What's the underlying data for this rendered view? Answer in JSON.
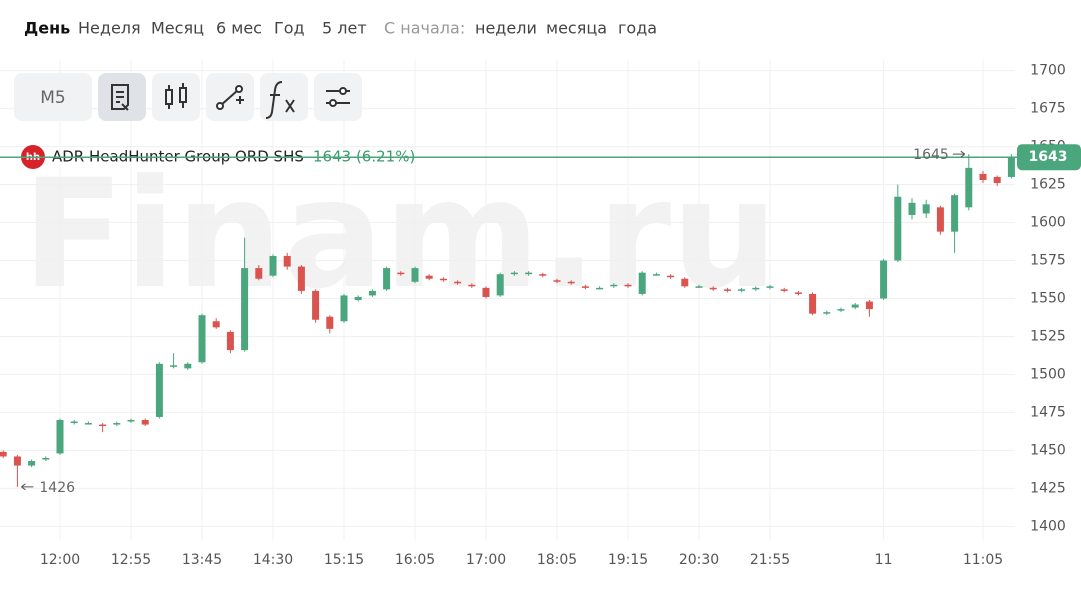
{
  "periods": [
    "День",
    "Неделя",
    "Месяц",
    "6 мес",
    "Год",
    "5 лет"
  ],
  "since_label": "С начала:",
  "since_options": [
    "недели",
    "месяца",
    "года"
  ],
  "toolbar": {
    "timeframe": "M5"
  },
  "watermark": "Finam.ru",
  "chart_data": {
    "type": "candlestick",
    "name": "ADR HeadHunter Group ORD SHS",
    "logo": "hh",
    "change_label": "1643 (6.21%)",
    "up_color": "#4aa67d",
    "down_color": "#d9534f",
    "grid": true,
    "categories": [
      null,
      null,
      null,
      null,
      "12:00",
      null,
      null,
      null,
      null,
      "12:55",
      null,
      null,
      null,
      null,
      "13:45",
      null,
      null,
      null,
      null,
      "14:30",
      null,
      null,
      null,
      null,
      "15:15",
      null,
      null,
      null,
      null,
      "16:05",
      null,
      null,
      null,
      null,
      "17:00",
      null,
      null,
      null,
      null,
      "18:05",
      null,
      null,
      null,
      null,
      "19:15",
      null,
      null,
      null,
      null,
      "20:30",
      null,
      null,
      null,
      null,
      "21:55",
      null,
      null,
      null,
      null,
      null,
      null,
      null,
      "11",
      null,
      null,
      null,
      null,
      null,
      null,
      "11:05",
      null,
      null
    ],
    "open": [
      1449,
      1446,
      1440,
      1444,
      1448,
      1468,
      1468,
      1467,
      1467,
      1469,
      1470,
      1472,
      1505,
      1504,
      1508,
      1535,
      1528,
      1516,
      1570,
      1565,
      1578,
      1571,
      1555,
      1538,
      1535,
      1549,
      1552,
      1556,
      1567,
      1561,
      1565,
      1563,
      1561,
      1559,
      1557,
      1552,
      1566,
      1566,
      1566,
      1562,
      1561,
      1558,
      1557,
      1558,
      1559,
      1553,
      1566,
      1565,
      1563,
      1558,
      1557,
      1556,
      1555,
      1556,
      1557,
      1556,
      1554,
      1553,
      1540,
      1542,
      1544,
      1548,
      1550,
      1575,
      1605,
      1606,
      1610,
      1594,
      1610,
      1632,
      1630,
      1630
    ],
    "high": [
      1450,
      1447,
      1444,
      1446,
      1471,
      1470,
      1469,
      1468,
      1469,
      1471,
      1471,
      1508,
      1514,
      1508,
      1540,
      1537,
      1529,
      1590,
      1572,
      1579,
      1580,
      1572,
      1556,
      1539,
      1553,
      1552,
      1556,
      1571,
      1568,
      1571,
      1566,
      1564,
      1562,
      1560,
      1558,
      1567,
      1568,
      1568,
      1567,
      1563,
      1562,
      1559,
      1558,
      1560,
      1560,
      1568,
      1567,
      1566,
      1564,
      1559,
      1558,
      1557,
      1557,
      1558,
      1559,
      1557,
      1555,
      1554,
      1542,
      1544,
      1547,
      1549,
      1576,
      1625,
      1616,
      1615,
      1611,
      1619,
      1645,
      1634,
      1631,
      1645
    ],
    "low": [
      1445,
      1426,
      1439,
      1443,
      1447,
      1467,
      1467,
      1462,
      1466,
      1468,
      1466,
      1471,
      1504,
      1503,
      1507,
      1530,
      1514,
      1515,
      1562,
      1564,
      1569,
      1553,
      1534,
      1527,
      1534,
      1548,
      1551,
      1555,
      1565,
      1560,
      1562,
      1561,
      1559,
      1557,
      1550,
      1551,
      1565,
      1565,
      1564,
      1560,
      1559,
      1556,
      1556,
      1557,
      1557,
      1552,
      1565,
      1563,
      1557,
      1557,
      1555,
      1554,
      1554,
      1555,
      1556,
      1554,
      1552,
      1539,
      1539,
      1541,
      1543,
      1538,
      1549,
      1574,
      1602,
      1603,
      1592,
      1580,
      1608,
      1626,
      1624,
      1629
    ],
    "close": [
      1446,
      1440,
      1443,
      1445,
      1470,
      1469,
      1468,
      1466,
      1468,
      1470,
      1467,
      1507,
      1506,
      1507,
      1539,
      1531,
      1516,
      1570,
      1563,
      1578,
      1571,
      1555,
      1536,
      1530,
      1552,
      1551,
      1555,
      1570,
      1566,
      1570,
      1563,
      1562,
      1560,
      1558,
      1551,
      1566,
      1567,
      1567,
      1565,
      1561,
      1560,
      1557,
      1557,
      1559,
      1558,
      1567,
      1566,
      1564,
      1558,
      1558,
      1556,
      1555,
      1556,
      1557,
      1558,
      1555,
      1553,
      1540,
      1541,
      1543,
      1546,
      1543,
      1575,
      1617,
      1613,
      1612,
      1594,
      1618,
      1636,
      1628,
      1626,
      1643
    ],
    "ylim": [
      1391,
      1707
    ],
    "yticks": [
      1400,
      1425,
      1450,
      1475,
      1500,
      1525,
      1550,
      1575,
      1600,
      1625,
      1650,
      1675,
      1700
    ]
  }
}
